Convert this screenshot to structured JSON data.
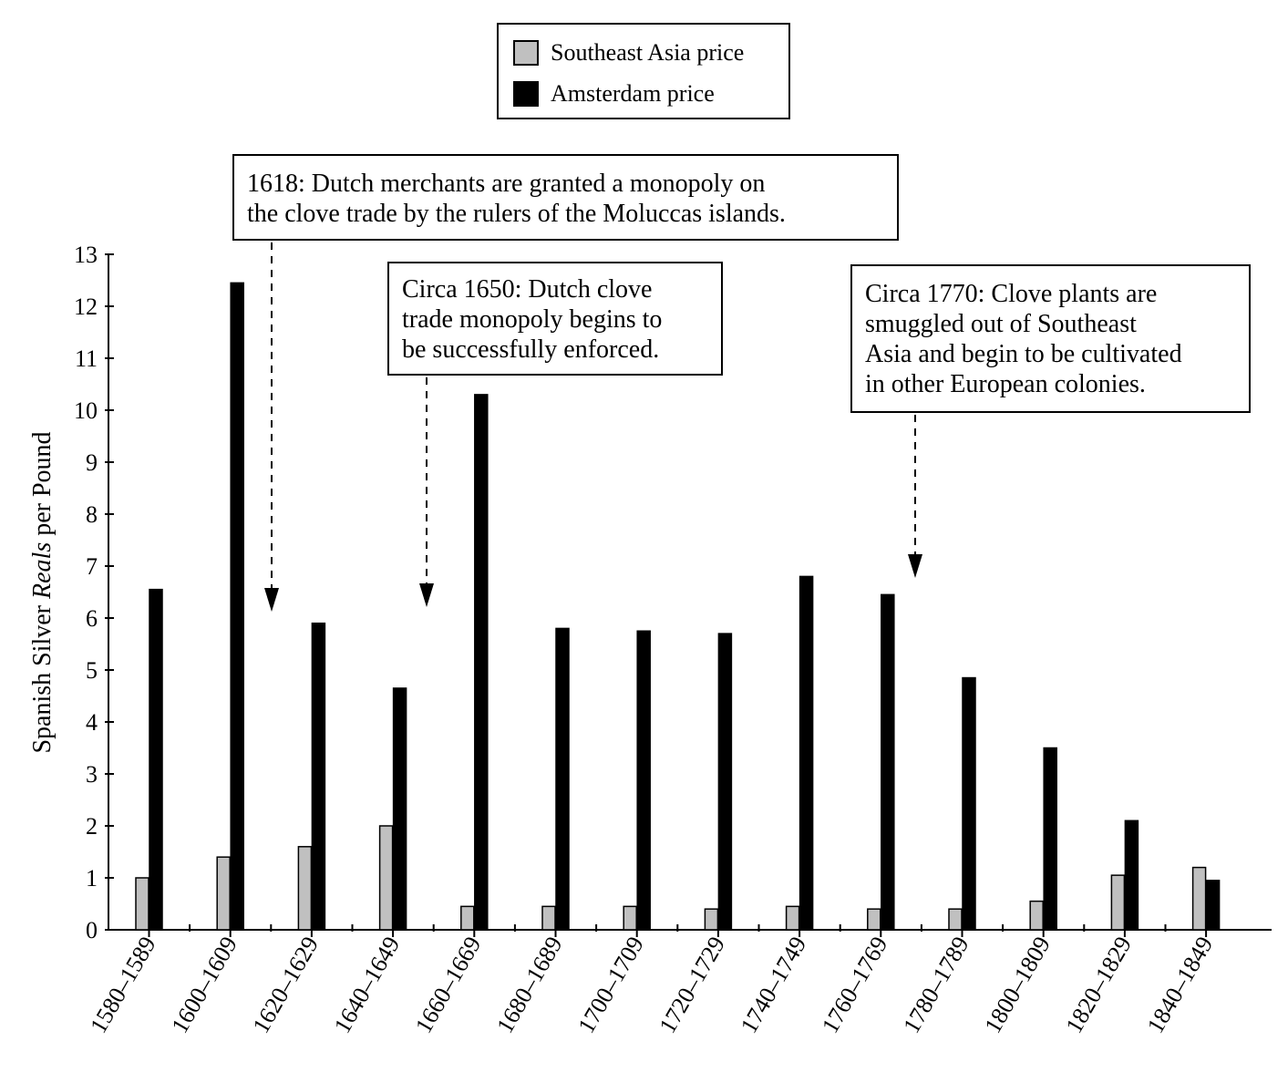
{
  "chart_data": {
    "type": "bar",
    "ylabel_parts": [
      "Spanish Silver ",
      "Reals",
      " per Pound"
    ],
    "ylim": [
      0,
      13
    ],
    "yticks": [
      "0",
      "1",
      "2",
      "3",
      "4",
      "5",
      "6",
      "7",
      "8",
      "9",
      "10",
      "11",
      "12",
      "13"
    ],
    "categories": [
      "1580–1589",
      "1600–1609",
      "1620–1629",
      "1640–1649",
      "1660–1669",
      "1680–1689",
      "1700–1709",
      "1720–1729",
      "1740–1749",
      "1760–1769",
      "1780–1789",
      "1800–1809",
      "1820–1829",
      "1840–1849"
    ],
    "series": [
      {
        "name": "Southeast Asia price",
        "color": "#c0c0c0",
        "values": [
          1.0,
          1.4,
          1.6,
          2.0,
          0.45,
          0.45,
          0.45,
          0.4,
          0.45,
          0.4,
          0.4,
          0.55,
          1.05,
          1.2
        ]
      },
      {
        "name": "Amsterdam price",
        "color": "#000000",
        "values": [
          6.55,
          12.45,
          5.9,
          4.65,
          10.3,
          5.8,
          5.75,
          5.7,
          6.8,
          6.45,
          4.85,
          3.5,
          2.1,
          0.95
        ]
      }
    ],
    "legend_position": "top-center",
    "grid": false,
    "annotations": [
      {
        "lines": [
          "1618: Dutch merchants are granted a monopoly on",
          "the clove trade by the rulers of the Moluccas islands."
        ],
        "x": "1618"
      },
      {
        "lines": [
          "Circa 1650: Dutch clove",
          "trade monopoly begins to",
          "be successfully enforced."
        ],
        "x": "1650"
      },
      {
        "lines": [
          "Circa 1770: Clove plants are",
          "smuggled out of Southeast",
          "Asia and begin to be cultivated",
          "in other European colonies."
        ],
        "x": "1770"
      }
    ]
  },
  "legend": {
    "items": [
      {
        "label": "Southeast Asia price",
        "color": "#c0c0c0"
      },
      {
        "label": "Amsterdam price",
        "color": "#000000"
      }
    ]
  }
}
